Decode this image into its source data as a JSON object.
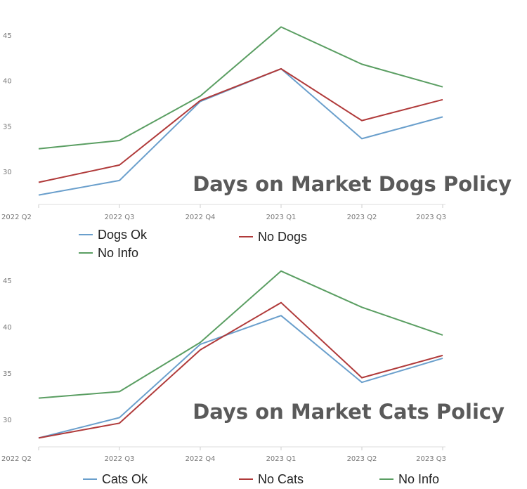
{
  "chart_data": [
    {
      "type": "line",
      "title": "Days on Market Dogs Policy",
      "categories": [
        "2022 Q2",
        "2022 Q3",
        "2022 Q4",
        "2023 Q1",
        "2023 Q2",
        "2023 Q3"
      ],
      "yticks": [
        "30",
        "35",
        "40",
        "45"
      ],
      "ylim": [
        27,
        47
      ],
      "grid": false,
      "legend_position": "bottom",
      "series": [
        {
          "name": "Dogs Ok",
          "color": "#6a9fcc",
          "values": [
            27.4,
            29.0,
            37.7,
            41.3,
            33.6,
            36.0
          ]
        },
        {
          "name": "No Dogs",
          "color": "#b03a3a",
          "values": [
            28.8,
            30.7,
            37.8,
            41.3,
            35.6,
            37.9
          ]
        },
        {
          "name": "No Info",
          "color": "#5a9e62",
          "values": [
            32.5,
            33.4,
            38.3,
            45.9,
            41.8,
            39.3
          ]
        }
      ]
    },
    {
      "type": "line",
      "title": "Days on Market Cats Policy",
      "categories": [
        "2022 Q2",
        "2022 Q3",
        "2022 Q4",
        "2023 Q1",
        "2023 Q2",
        "2023 Q3"
      ],
      "yticks": [
        "30",
        "35",
        "40",
        "45"
      ],
      "ylim": [
        27,
        47
      ],
      "grid": false,
      "legend_position": "bottom",
      "series": [
        {
          "name": "Cats Ok",
          "color": "#6a9fcc",
          "values": [
            28.0,
            30.2,
            38.1,
            41.2,
            34.0,
            36.6
          ]
        },
        {
          "name": "No Cats",
          "color": "#b03a3a",
          "values": [
            28.0,
            29.6,
            37.5,
            42.6,
            34.5,
            36.9
          ]
        },
        {
          "name": "No Info",
          "color": "#5a9e62",
          "values": [
            32.3,
            33.0,
            38.3,
            46.0,
            42.1,
            39.1
          ]
        }
      ]
    }
  ]
}
